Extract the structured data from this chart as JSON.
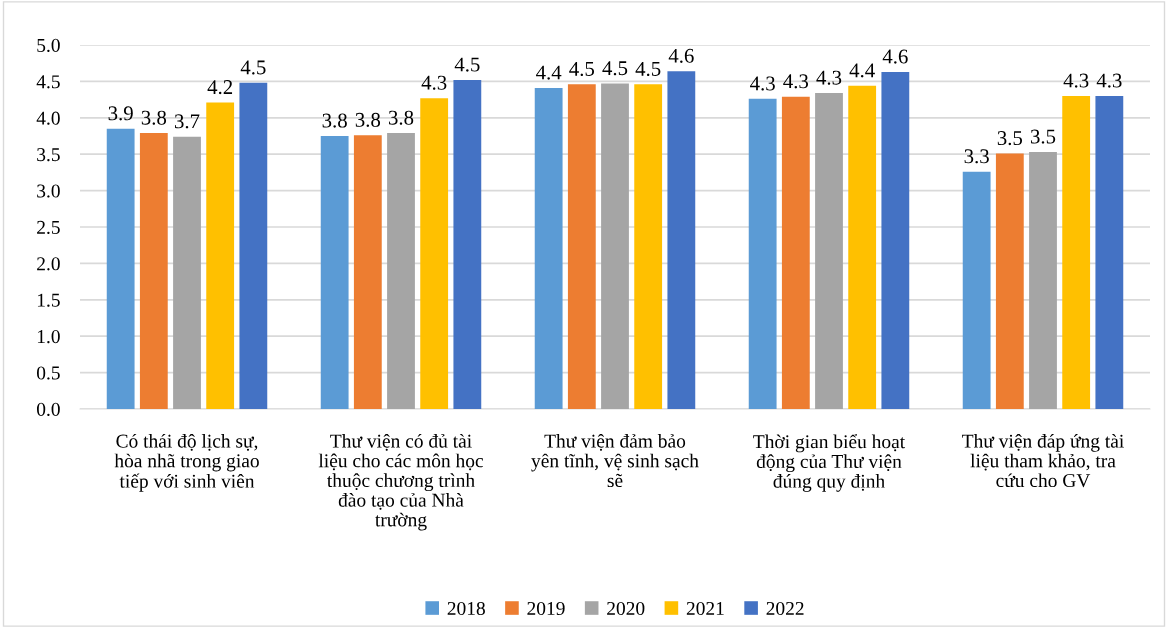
{
  "chart_data": {
    "type": "bar",
    "categories": [
      "Có thái độ lịch sự,\nhòa nhã trong giao\ntiếp với sinh viên",
      "Thư viện có đủ tài\nliệu cho các môn học\nthuộc chương trình\nđào tạo của Nhà\ntrường",
      "Thư viện đảm bảo\nyên tĩnh, vệ sinh sạch\nsẽ",
      "Thời gian biểu hoạt\nđộng của Thư viện\nđúng quy định",
      "Thư viện đáp ứng tài\nliệu tham khảo, tra\ncứu cho GV"
    ],
    "series": [
      {
        "name": "2018",
        "color": "#5b9bd5",
        "values": [
          3.85,
          3.75,
          4.41,
          4.26,
          3.26
        ],
        "value_labels": [
          "3.9",
          "3.8",
          "4.4",
          "4.3",
          "3.3"
        ]
      },
      {
        "name": "2019",
        "color": "#ed7d31",
        "values": [
          3.79,
          3.76,
          4.46,
          4.29,
          3.51
        ],
        "value_labels": [
          "3.8",
          "3.8",
          "4.5",
          "4.3",
          "3.5"
        ]
      },
      {
        "name": "2020",
        "color": "#a5a5a5",
        "values": [
          3.74,
          3.79,
          4.47,
          4.34,
          3.53
        ],
        "value_labels": [
          "3.7",
          "3.8",
          "4.5",
          "4.3",
          "3.5"
        ]
      },
      {
        "name": "2021",
        "color": "#ffc000",
        "values": [
          4.21,
          4.27,
          4.46,
          4.44,
          4.3
        ],
        "value_labels": [
          "4.2",
          "4.3",
          "4.5",
          "4.4",
          "4.3"
        ]
      },
      {
        "name": "2022",
        "color": "#4472c4",
        "values": [
          4.48,
          4.52,
          4.64,
          4.63,
          4.3
        ],
        "value_labels": [
          "4.5",
          "4.5",
          "4.6",
          "4.6",
          "4.3"
        ]
      }
    ],
    "ylim": [
      0,
      5
    ],
    "yticks": [
      {
        "value": 0,
        "label": "0.0"
      },
      {
        "value": 0.5,
        "label": "0.5"
      },
      {
        "value": 1,
        "label": "1.0"
      },
      {
        "value": 1.5,
        "label": "1.5"
      },
      {
        "value": 2,
        "label": "2.0"
      },
      {
        "value": 2.5,
        "label": "2.5"
      },
      {
        "value": 3,
        "label": "3.0"
      },
      {
        "value": 3.5,
        "label": "3.5"
      },
      {
        "value": 4,
        "label": "4.0"
      },
      {
        "value": 4.5,
        "label": "4.5"
      },
      {
        "value": 5,
        "label": "5.0"
      }
    ],
    "grid": "y",
    "legend": "bottom"
  }
}
